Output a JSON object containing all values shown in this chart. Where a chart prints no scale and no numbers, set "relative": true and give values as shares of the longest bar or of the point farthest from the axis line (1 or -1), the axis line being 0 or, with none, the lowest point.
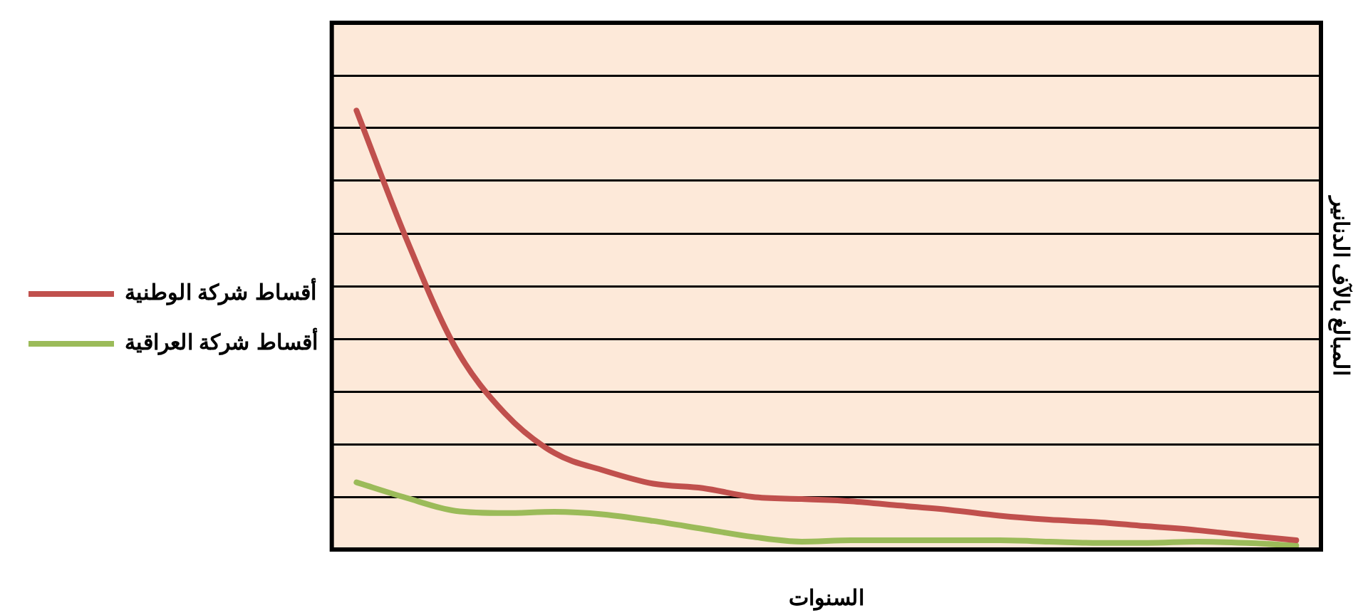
{
  "chart_data": {
    "type": "line",
    "xlabel": "السنوات",
    "ylabel": "المبالغ بالآف الدنانير",
    "relative": true,
    "grid": "y",
    "legend": "left",
    "marker": "none",
    "line_style": "solid",
    "categories": [
      null,
      null,
      null,
      null,
      null,
      null,
      null,
      null,
      null,
      null,
      null,
      null,
      null,
      null,
      null,
      null,
      null,
      null,
      null,
      null
    ],
    "series": [
      {
        "name": "أقساط شركة الوطنية",
        "color": "#c0504d",
        "values": [
          1,
          0.71,
          0.46,
          0.31,
          0.22,
          0.18,
          0.15,
          0.14,
          0.12,
          0.115,
          0.11,
          0.1,
          0.09,
          0.077,
          0.068,
          0.062,
          0.053,
          0.044,
          0.032,
          0.021
        ]
      },
      {
        "name": "أقساط شركة العراقية",
        "color": "#9bbb59",
        "values": [
          0.153,
          0.118,
          0.088,
          0.083,
          0.086,
          0.08,
          0.065,
          0.047,
          0.029,
          0.018,
          0.021,
          0.021,
          0.021,
          0.021,
          0.018,
          0.015,
          0.015,
          0.018,
          0.015,
          0.009
        ]
      }
    ]
  }
}
